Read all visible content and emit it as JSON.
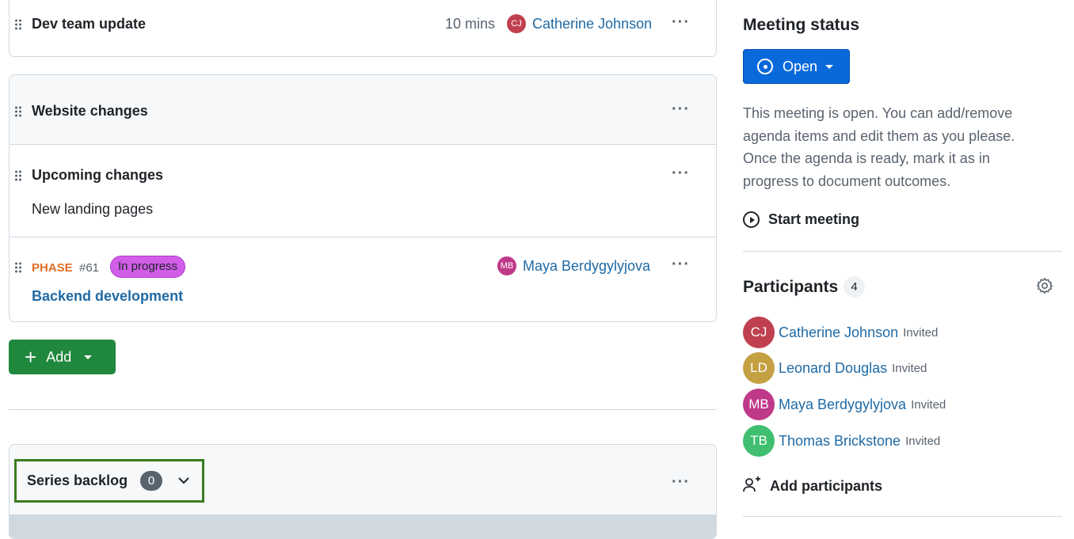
{
  "agenda": {
    "item1": {
      "title": "Dev team update",
      "duration": "10 mins",
      "owner": {
        "initials": "CJ",
        "name": "Catherine Johnson",
        "color": "#c0404f"
      }
    },
    "section": {
      "title": "Website changes",
      "items": [
        {
          "title": "Upcoming changes",
          "notes": "New landing pages"
        },
        {
          "type": "PHASE",
          "number": "#61",
          "status": "In progress",
          "title": "Backend development",
          "owner": {
            "initials": "MB",
            "name": "Maya Berdygylyjova",
            "color": "#bf3989"
          }
        }
      ]
    },
    "add_label": "Add",
    "backlog": {
      "title": "Series backlog",
      "count": "0"
    }
  },
  "sidebar": {
    "status_heading": "Meeting status",
    "status_button": "Open",
    "status_description": "This meeting is open. You can add/remove agenda items and edit them as you please. Once the agenda is ready, mark it as in progress to document outcomes.",
    "start_meeting": "Start meeting",
    "participants_heading": "Participants",
    "participants_count": "4",
    "participants": [
      {
        "initials": "CJ",
        "name": "Catherine Johnson",
        "status": "Invited",
        "color": "#c0404f"
      },
      {
        "initials": "LD",
        "name": "Leonard Douglas",
        "status": "Invited",
        "color": "#c4a042"
      },
      {
        "initials": "MB",
        "name": "Maya Berdygylyjova",
        "status": "Invited",
        "color": "#bf3989"
      },
      {
        "initials": "TB",
        "name": "Thomas Brickstone",
        "status": "Invited",
        "color": "#3fbf6f"
      }
    ],
    "add_participants": "Add participants"
  },
  "colors": {
    "accent": "#0969da",
    "add_button": "#1f883d",
    "phase": "#e16f24",
    "status_badge": "#d15de8"
  }
}
